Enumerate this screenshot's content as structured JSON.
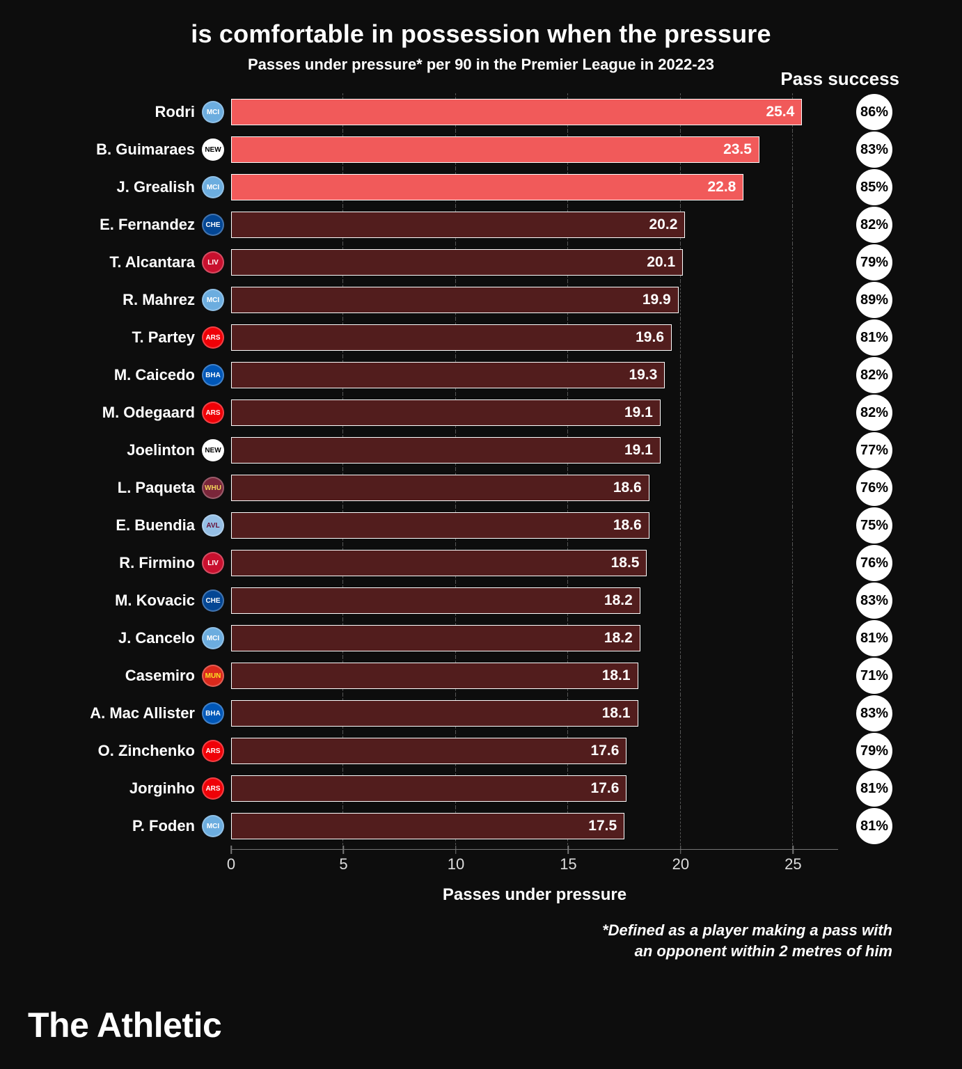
{
  "title": "is comfortable in possession when the pressure",
  "subtitle": "Passes under pressure* per 90 in the Premier League in 2022-23",
  "pass_success_header": "Pass success",
  "x_axis": {
    "label": "Passes under pressure",
    "min": 0,
    "max": 27,
    "ticks": [
      0,
      5,
      10,
      15,
      20,
      25
    ]
  },
  "bar_stroke": "#ffffff",
  "highlight_color": "#f15a5a",
  "normal_color": "#521d1d",
  "grid_color": "#555555",
  "background_color": "#0d0d0d",
  "pill_bg": "#ffffff",
  "pill_fg": "#000000",
  "rows": [
    {
      "player": "Rodri",
      "team": "MCI",
      "team_bg": "#6caddf",
      "team_fg": "#ffffff",
      "value": 25.4,
      "success": "86%",
      "highlight": true
    },
    {
      "player": "B. Guimaraes",
      "team": "NEW",
      "team_bg": "#ffffff",
      "team_fg": "#000000",
      "value": 23.5,
      "success": "83%",
      "highlight": true
    },
    {
      "player": "J. Grealish",
      "team": "MCI",
      "team_bg": "#6caddf",
      "team_fg": "#ffffff",
      "value": 22.8,
      "success": "85%",
      "highlight": true
    },
    {
      "player": "E. Fernandez",
      "team": "CHE",
      "team_bg": "#034694",
      "team_fg": "#ffffff",
      "value": 20.2,
      "success": "82%",
      "highlight": false
    },
    {
      "player": "T. Alcantara",
      "team": "LIV",
      "team_bg": "#c8102e",
      "team_fg": "#ffffff",
      "value": 20.1,
      "success": "79%",
      "highlight": false
    },
    {
      "player": "R. Mahrez",
      "team": "MCI",
      "team_bg": "#6caddf",
      "team_fg": "#ffffff",
      "value": 19.9,
      "success": "89%",
      "highlight": false
    },
    {
      "player": "T. Partey",
      "team": "ARS",
      "team_bg": "#ef0107",
      "team_fg": "#ffffff",
      "value": 19.6,
      "success": "81%",
      "highlight": false
    },
    {
      "player": "M. Caicedo",
      "team": "BHA",
      "team_bg": "#0057b8",
      "team_fg": "#ffffff",
      "value": 19.3,
      "success": "82%",
      "highlight": false
    },
    {
      "player": "M. Odegaard",
      "team": "ARS",
      "team_bg": "#ef0107",
      "team_fg": "#ffffff",
      "value": 19.1,
      "success": "82%",
      "highlight": false
    },
    {
      "player": "Joelinton",
      "team": "NEW",
      "team_bg": "#ffffff",
      "team_fg": "#000000",
      "value": 19.1,
      "success": "77%",
      "highlight": false
    },
    {
      "player": "L. Paqueta",
      "team": "WHU",
      "team_bg": "#7a263a",
      "team_fg": "#f3d459",
      "value": 18.6,
      "success": "76%",
      "highlight": false
    },
    {
      "player": "E. Buendia",
      "team": "AVL",
      "team_bg": "#95bfe5",
      "team_fg": "#670e36",
      "value": 18.6,
      "success": "75%",
      "highlight": false
    },
    {
      "player": "R. Firmino",
      "team": "LIV",
      "team_bg": "#c8102e",
      "team_fg": "#ffffff",
      "value": 18.5,
      "success": "76%",
      "highlight": false
    },
    {
      "player": "M. Kovacic",
      "team": "CHE",
      "team_bg": "#034694",
      "team_fg": "#ffffff",
      "value": 18.2,
      "success": "83%",
      "highlight": false
    },
    {
      "player": "J. Cancelo",
      "team": "MCI",
      "team_bg": "#6caddf",
      "team_fg": "#ffffff",
      "value": 18.2,
      "success": "81%",
      "highlight": false
    },
    {
      "player": "Casemiro",
      "team": "MUN",
      "team_bg": "#da291c",
      "team_fg": "#fbe122",
      "value": 18.1,
      "success": "71%",
      "highlight": false
    },
    {
      "player": "A. Mac Allister",
      "team": "BHA",
      "team_bg": "#0057b8",
      "team_fg": "#ffffff",
      "value": 18.1,
      "success": "83%",
      "highlight": false
    },
    {
      "player": "O. Zinchenko",
      "team": "ARS",
      "team_bg": "#ef0107",
      "team_fg": "#ffffff",
      "value": 17.6,
      "success": "79%",
      "highlight": false
    },
    {
      "player": "Jorginho",
      "team": "ARS",
      "team_bg": "#ef0107",
      "team_fg": "#ffffff",
      "value": 17.6,
      "success": "81%",
      "highlight": false
    },
    {
      "player": "P. Foden",
      "team": "MCI",
      "team_bg": "#6caddf",
      "team_fg": "#ffffff",
      "value": 17.5,
      "success": "81%",
      "highlight": false
    }
  ],
  "footnote_l1": "*Defined as a player making a pass with",
  "footnote_l2": "an opponent within 2 metres of him",
  "brand": "The Athletic"
}
